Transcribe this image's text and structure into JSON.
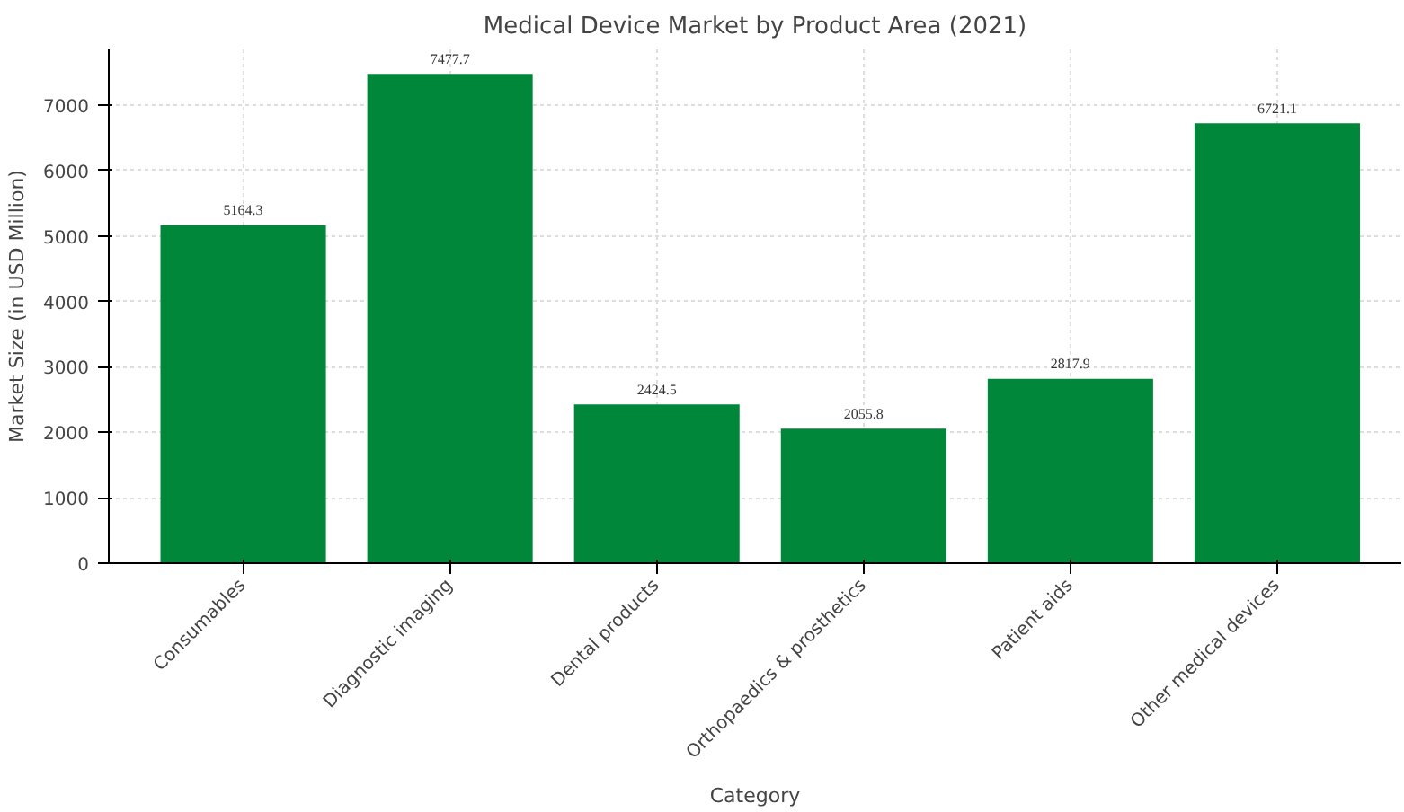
{
  "chart_data": {
    "type": "bar",
    "title": "Medical Device Market by Product Area (2021)",
    "xlabel": "Category",
    "ylabel": "Market Size (in USD Million)",
    "categories": [
      "Consumables",
      "Diagnostic imaging",
      "Dental products",
      "Orthopaedics & prosthetics",
      "Patient aids",
      "Other medical devices"
    ],
    "values": [
      5164.3,
      7477.7,
      2424.5,
      2055.8,
      2817.9,
      6721.1
    ],
    "color": "#00873a",
    "ylim": [
      0,
      7851
    ],
    "yticks": [
      0,
      1000,
      2000,
      3000,
      4000,
      5000,
      6000,
      7000
    ],
    "grid": true,
    "data_labels": true
  }
}
